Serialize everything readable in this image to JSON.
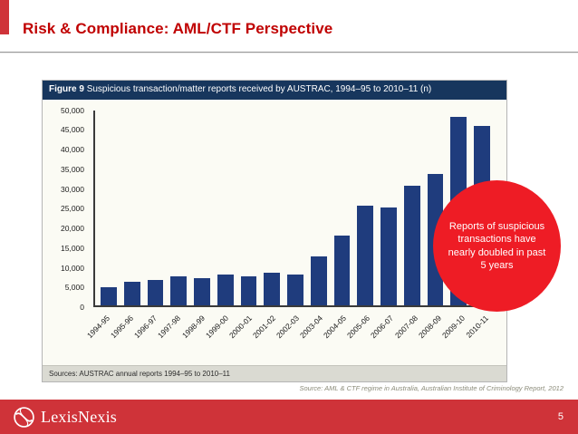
{
  "slide": {
    "title": "Risk & Compliance: AML/CTF Perspective",
    "page_number": "5",
    "source_note": "Source: AML & CTF regime in Australia, Australian Institute of Criminology Report, 2012",
    "logo_text": "LexisNexis"
  },
  "callout": {
    "text": "Reports of suspicious transactions have nearly doubled in past 5 years"
  },
  "chart_data": {
    "type": "bar",
    "title": "Figure 9 Suspicious transaction/matter reports received by AUSTRAC, 1994–95 to 2010–11 (n)",
    "title_prefix": "Figure 9",
    "title_rest": "Suspicious transaction/matter reports received by AUSTRAC, 1994–95 to 2010–11 (n)",
    "categories": [
      "1994-95",
      "1995-96",
      "1996-97",
      "1997-98",
      "1998-99",
      "1999-00",
      "2000-01",
      "2001-02",
      "2002-03",
      "2003-04",
      "2004-05",
      "2005-06",
      "2006-07",
      "2007-08",
      "2008-09",
      "2009-10",
      "2010-11"
    ],
    "values": [
      4600,
      6100,
      6500,
      7500,
      7000,
      7900,
      7400,
      8300,
      7900,
      12500,
      17900,
      25500,
      25100,
      30700,
      33600,
      48200,
      45900
    ],
    "xlabel": "",
    "ylabel": "",
    "ylim": [
      0,
      50000
    ],
    "yticks": [
      "0",
      "5,000",
      "10,000",
      "15,000",
      "20,000",
      "25,000",
      "30,000",
      "35,000",
      "40,000",
      "45,000",
      "50,000"
    ],
    "grid": false,
    "legend": false,
    "source": "Sources: AUSTRAC annual reports 1994–95 to 2010–11",
    "bar_color": "#1F3C7D",
    "header_color": "#17365D"
  },
  "colors": {
    "title_red": "#C00000",
    "footer_red": "#CF3339",
    "callout_red": "#EE1C25"
  }
}
